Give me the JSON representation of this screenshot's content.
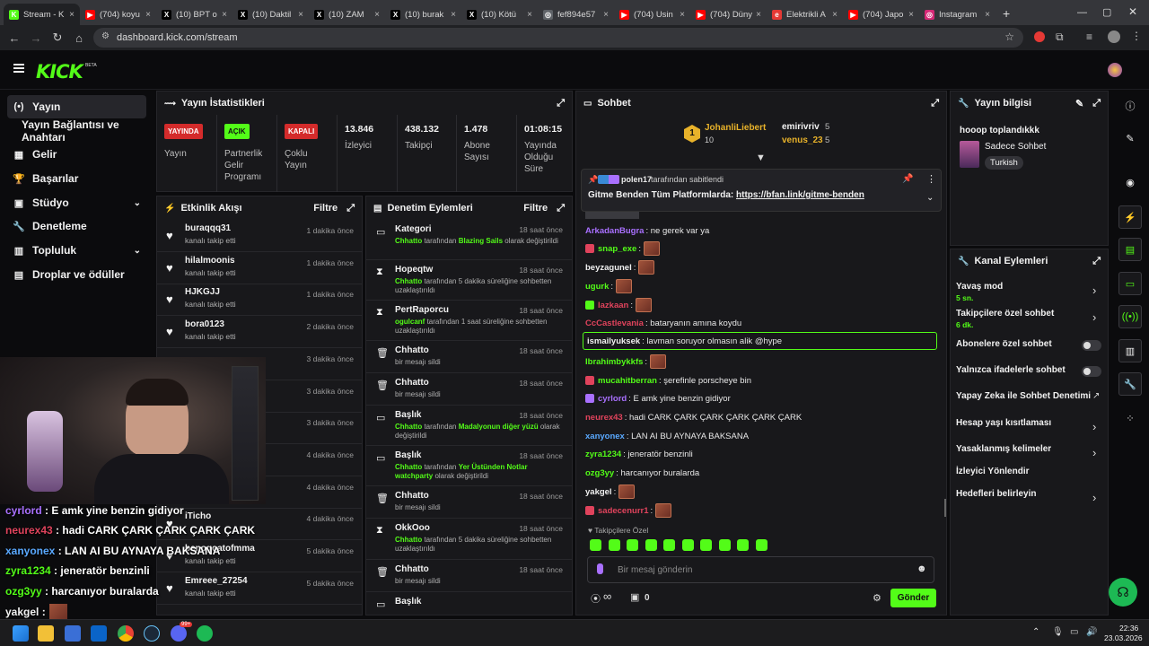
{
  "browser": {
    "tabs": [
      {
        "label": "Stream - K",
        "fav": "K",
        "color": "#53fc18",
        "active": true
      },
      {
        "label": "(704) koyu",
        "fav": "▶",
        "color": "#ff0000"
      },
      {
        "label": "(10) BPT o",
        "fav": "X",
        "color": "#000000"
      },
      {
        "label": "(10) Daktil",
        "fav": "X",
        "color": "#000000"
      },
      {
        "label": "(10) ZAM",
        "fav": "X",
        "color": "#000000"
      },
      {
        "label": "(10) burak",
        "fav": "X",
        "color": "#000000"
      },
      {
        "label": "(10) Kötü",
        "fav": "X",
        "color": "#000000"
      },
      {
        "label": "fef894e57",
        "fav": "◎",
        "color": "#5f6368"
      },
      {
        "label": "(704) Usin",
        "fav": "▶",
        "color": "#ff0000"
      },
      {
        "label": "(704) Düny",
        "fav": "▶",
        "color": "#ff0000"
      },
      {
        "label": "Elektrikli A",
        "fav": "e",
        "color": "#e53935"
      },
      {
        "label": "(704) Japo",
        "fav": "▶",
        "color": "#ff0000"
      },
      {
        "label": "Instagram",
        "fav": "◎",
        "color": "#d62976"
      }
    ],
    "new_tab": "+",
    "url": "dashboard.kick.com/stream"
  },
  "header": {
    "logo": "KICK",
    "beta": "BETA"
  },
  "sidebar": {
    "items": [
      {
        "label": "Yayın",
        "icon": "(•)",
        "active": true
      },
      {
        "label": "Yayın Bağlantısı ve Anahtarı",
        "icon": ""
      },
      {
        "label": "Gelir",
        "icon": "▦"
      },
      {
        "label": "Başarılar",
        "icon": "🏆"
      },
      {
        "label": "Stüdyo",
        "icon": "▣",
        "chevron": true
      },
      {
        "label": "Denetleme",
        "icon": "🔧"
      },
      {
        "label": "Topluluk",
        "icon": "▥",
        "chevron": true
      },
      {
        "label": "Droplar ve ödüller",
        "icon": "▤"
      }
    ]
  },
  "stats": {
    "title": "Yayın İstatistikleri",
    "cells": [
      {
        "badge": "YAYINDA",
        "badge_color": "#d42b2b",
        "label": "Yayın"
      },
      {
        "badge": "AÇIK",
        "badge_color": "#53fc18",
        "label": "Partnerlik Gelir Programı"
      },
      {
        "badge": "KAPALI",
        "badge_color": "#d42b2b",
        "label": "Çoklu Yayın"
      },
      {
        "value": "13.846",
        "label": "İzleyici"
      },
      {
        "value": "438.132",
        "label": "Takipçi"
      },
      {
        "value": "1.478",
        "label": "Abone Sayısı"
      },
      {
        "value": "01:08:15",
        "label": "Yayında Olduğu Süre"
      }
    ]
  },
  "activity": {
    "title": "Etkinlik Akışı",
    "filter": "Filtre",
    "items": [
      {
        "name": "buraqqq31",
        "sub": "kanalı takip etti",
        "time": "1 dakika önce"
      },
      {
        "name": "hilalmoonis",
        "sub": "kanalı takip etti",
        "time": "1 dakika önce"
      },
      {
        "name": "HJKGJJ",
        "sub": "kanalı takip etti",
        "time": "1 dakika önce"
      },
      {
        "name": "bora0123",
        "sub": "kanalı takip etti",
        "time": "2 dakika önce"
      },
      {
        "name": "",
        "sub": "",
        "time": "3 dakika önce"
      },
      {
        "name": "",
        "sub": "",
        "time": "3 dakika önce"
      },
      {
        "name": "",
        "sub": "",
        "time": "3 dakika önce"
      },
      {
        "name": "",
        "sub": "",
        "time": "4 dakika önce"
      },
      {
        "name": "",
        "sub": "",
        "time": "4 dakika önce"
      },
      {
        "name": "iTicho",
        "sub": "",
        "time": "4 dakika önce"
      },
      {
        "name": "benogoatofmma",
        "sub": "kanalı takip etti",
        "time": "5 dakika önce"
      },
      {
        "name": "Emreee_27254",
        "sub": "kanalı takip etti",
        "time": "5 dakika önce"
      }
    ]
  },
  "moderation": {
    "title": "Denetim Eylemleri",
    "filter": "Filtre",
    "items": [
      {
        "icon": "▭",
        "name": "Kategori",
        "sub_pre": "Chhatto",
        "sub_mid": " tarafından ",
        "sub_hl": "Blazing Sails",
        "sub_post": " olarak değiştirildi",
        "time": "18 saat önce"
      },
      {
        "icon": "⧗",
        "name": "Hopeqtw",
        "sub_pre": "Chhatto",
        "sub_mid": " tarafından 5 dakika süreliğine sohbetten uzaklaştırıldı",
        "sub_hl": "",
        "sub_post": "",
        "time": "18 saat önce"
      },
      {
        "icon": "⧗",
        "name": "PertRaporcu",
        "sub_pre": "ogulcanf",
        "sub_mid": " tarafından 1 saat süreliğine sohbetten uzaklaştırıldı",
        "sub_hl": "",
        "sub_post": "",
        "time": "18 saat önce"
      },
      {
        "icon": "🗑",
        "name": "Chhatto",
        "sub_pre": "",
        "sub_mid": "bir mesajı sildi",
        "sub_hl": "",
        "sub_post": "",
        "time": "18 saat önce"
      },
      {
        "icon": "🗑",
        "name": "Chhatto",
        "sub_pre": "",
        "sub_mid": "bir mesajı sildi",
        "sub_hl": "",
        "sub_post": "",
        "time": "18 saat önce"
      },
      {
        "icon": "▭",
        "name": "Başlık",
        "sub_pre": "Chhatto",
        "sub_mid": " tarafından ",
        "sub_hl": "Madalyonun diğer yüzü",
        "sub_post": " olarak değiştirildi",
        "time": "18 saat önce"
      },
      {
        "icon": "▭",
        "name": "Başlık",
        "sub_pre": "Chhatto",
        "sub_mid": " tarafından ",
        "sub_hl": "Yer Üstünden Notlar watchparty",
        "sub_post": " olarak değiştirildi",
        "time": "18 saat önce"
      },
      {
        "icon": "🗑",
        "name": "Chhatto",
        "sub_pre": "",
        "sub_mid": "bir mesajı sildi",
        "sub_hl": "",
        "sub_post": "",
        "time": "18 saat önce"
      },
      {
        "icon": "⧗",
        "name": "OkkOoo",
        "sub_pre": "Chhatto",
        "sub_mid": " tarafından 5 dakika süreliğine sohbetten uzaklaştırıldı",
        "sub_hl": "",
        "sub_post": "",
        "time": "18 saat önce"
      },
      {
        "icon": "🗑",
        "name": "Chhatto",
        "sub_pre": "",
        "sub_mid": "bir mesajı sildi",
        "sub_hl": "",
        "sub_post": "",
        "time": "18 saat önce"
      },
      {
        "icon": "▭",
        "name": "Başlık",
        "sub_pre": "",
        "sub_mid": "",
        "sub_hl": "",
        "sub_post": "",
        "time": ""
      }
    ]
  },
  "chat": {
    "title": "Sohbet",
    "leaderboard": {
      "first_name": "JohanliLiebert",
      "first_count": "10",
      "rank": "1",
      "second_name": "emirivriv",
      "second_count": "5",
      "third_name": "venus_23",
      "third_count": "5"
    },
    "pinned": {
      "by_user": "polen17",
      "by_text": "tarafından sabitlendi",
      "message_pre": "Gitme Benden Tüm Platformlarda: ",
      "link": "https://bfan.link/gitme-benden"
    },
    "messages": [
      {
        "user": "ArkadanBugra",
        "color": "#a970ff",
        "text": ": ne gerek var ya",
        "emote": false
      },
      {
        "user": "snap_exe",
        "color": "#53fc18",
        "text": ":",
        "emote": true,
        "badge": "#e0435c"
      },
      {
        "user": "beyzagunel",
        "color": "#f1f1f1",
        "text": ":",
        "emote": true
      },
      {
        "user": "ugurk",
        "color": "#53fc18",
        "text": ":",
        "emote": true
      },
      {
        "user": "lazkaan",
        "color": "#e0435c",
        "text": ":",
        "emote": true,
        "badge": "#53fc18"
      },
      {
        "user": "CcCastlevania",
        "color": "#e0435c",
        "text": ": bataryanın amına koydu",
        "emote": false
      },
      {
        "user": "ismailyuksek",
        "color": "#f1f1f1",
        "text": ": lavman soruyor olmasın alik @hype",
        "emote": false,
        "highlight": true
      },
      {
        "user": "Ibrahimbykkfs",
        "color": "#53fc18",
        "text": ":",
        "emote": true
      },
      {
        "user": "mucahitberran",
        "color": "#53fc18",
        "text": ": şerefinle porscheye bin",
        "emote": false,
        "badge": "#e0435c"
      },
      {
        "user": "cyrlord",
        "color": "#a970ff",
        "text": ": E amk yine benzin gidiyor",
        "emote": false,
        "badge": "#a970ff"
      },
      {
        "user": "neurex43",
        "color": "#e0435c",
        "text": ": hadi CARK ÇARK ÇARK ÇARK ÇARK ÇARK",
        "emote": false
      },
      {
        "user": "xanyonex",
        "color": "#5aa9ff",
        "text": ": LAN AI BU AYNAYA BAKSANA",
        "emote": false
      },
      {
        "user": "zyra1234",
        "color": "#53fc18",
        "text": ": jeneratör benzinli",
        "emote": false
      },
      {
        "user": "ozg3yy",
        "color": "#53fc18",
        "text": ": harcanıyor buralarda",
        "emote": false
      },
      {
        "user": "yakgel",
        "color": "#f1f1f1",
        "text": ":",
        "emote": true
      },
      {
        "user": "sadecenurr1",
        "color": "#e0435c",
        "text": ":",
        "emote": true,
        "badge": "#e0435c"
      }
    ],
    "followers_only": "Takipçilere Özel",
    "input_placeholder": "Bir mesaj gönderin",
    "infinity": "∞",
    "gift_count": "0",
    "send": "Gönder"
  },
  "stream_info": {
    "title": "Yayın bilgisi",
    "stream_title": "hooop toplandıkkk",
    "category": "Sadece Sohbet",
    "tag": "Turkish"
  },
  "channel_actions": {
    "title": "Kanal Eylemleri",
    "items": [
      {
        "label": "Yavaş mod",
        "sub": "5 sn.",
        "control": "arrow"
      },
      {
        "label": "Takipçilere özel sohbet",
        "sub": "6 dk.",
        "control": "arrow"
      },
      {
        "label": "Abonelere özel sohbet",
        "sub": "",
        "control": "toggle"
      },
      {
        "label": "Yalnızca ifadelerle sohbet",
        "sub": "",
        "control": "toggle"
      },
      {
        "label": "Yapay Zeka ile Sohbet Denetimi",
        "sub": "",
        "control": "external"
      },
      {
        "label": "Hesap yaşı kısıtlaması",
        "sub": "",
        "control": "arrow"
      },
      {
        "label": "Yasaklanmış kelimeler",
        "sub": "",
        "control": "arrow"
      },
      {
        "label": "İzleyici Yönlendir",
        "sub": "",
        "control": "none"
      },
      {
        "label": "Hedefleri belirleyin",
        "sub": "",
        "control": "arrow"
      }
    ]
  },
  "overlay": {
    "lines": [
      {
        "user": "cyrlord",
        "color": "#a970ff",
        "text": " : E amk yine benzin gidiyor"
      },
      {
        "user": "neurex43",
        "color": "#e0435c",
        "text": " : hadi CARK ÇARK ÇARK ÇARK ÇARK"
      },
      {
        "user": "xanyonex",
        "color": "#5aa9ff",
        "text": " : LAN AI BU AYNAYA BAKSANA"
      },
      {
        "user": "zyra1234",
        "color": "#53fc18",
        "text": " : jeneratör benzinli"
      },
      {
        "user": "ozg3yy",
        "color": "#53fc18",
        "text": " : harcanıyor buralarda"
      },
      {
        "user": "yakgel",
        "color": "#f1f1f1",
        "text": " :"
      }
    ]
  },
  "taskbar": {
    "time": "22:36",
    "date": "23.03.2026",
    "notif": "99+"
  }
}
